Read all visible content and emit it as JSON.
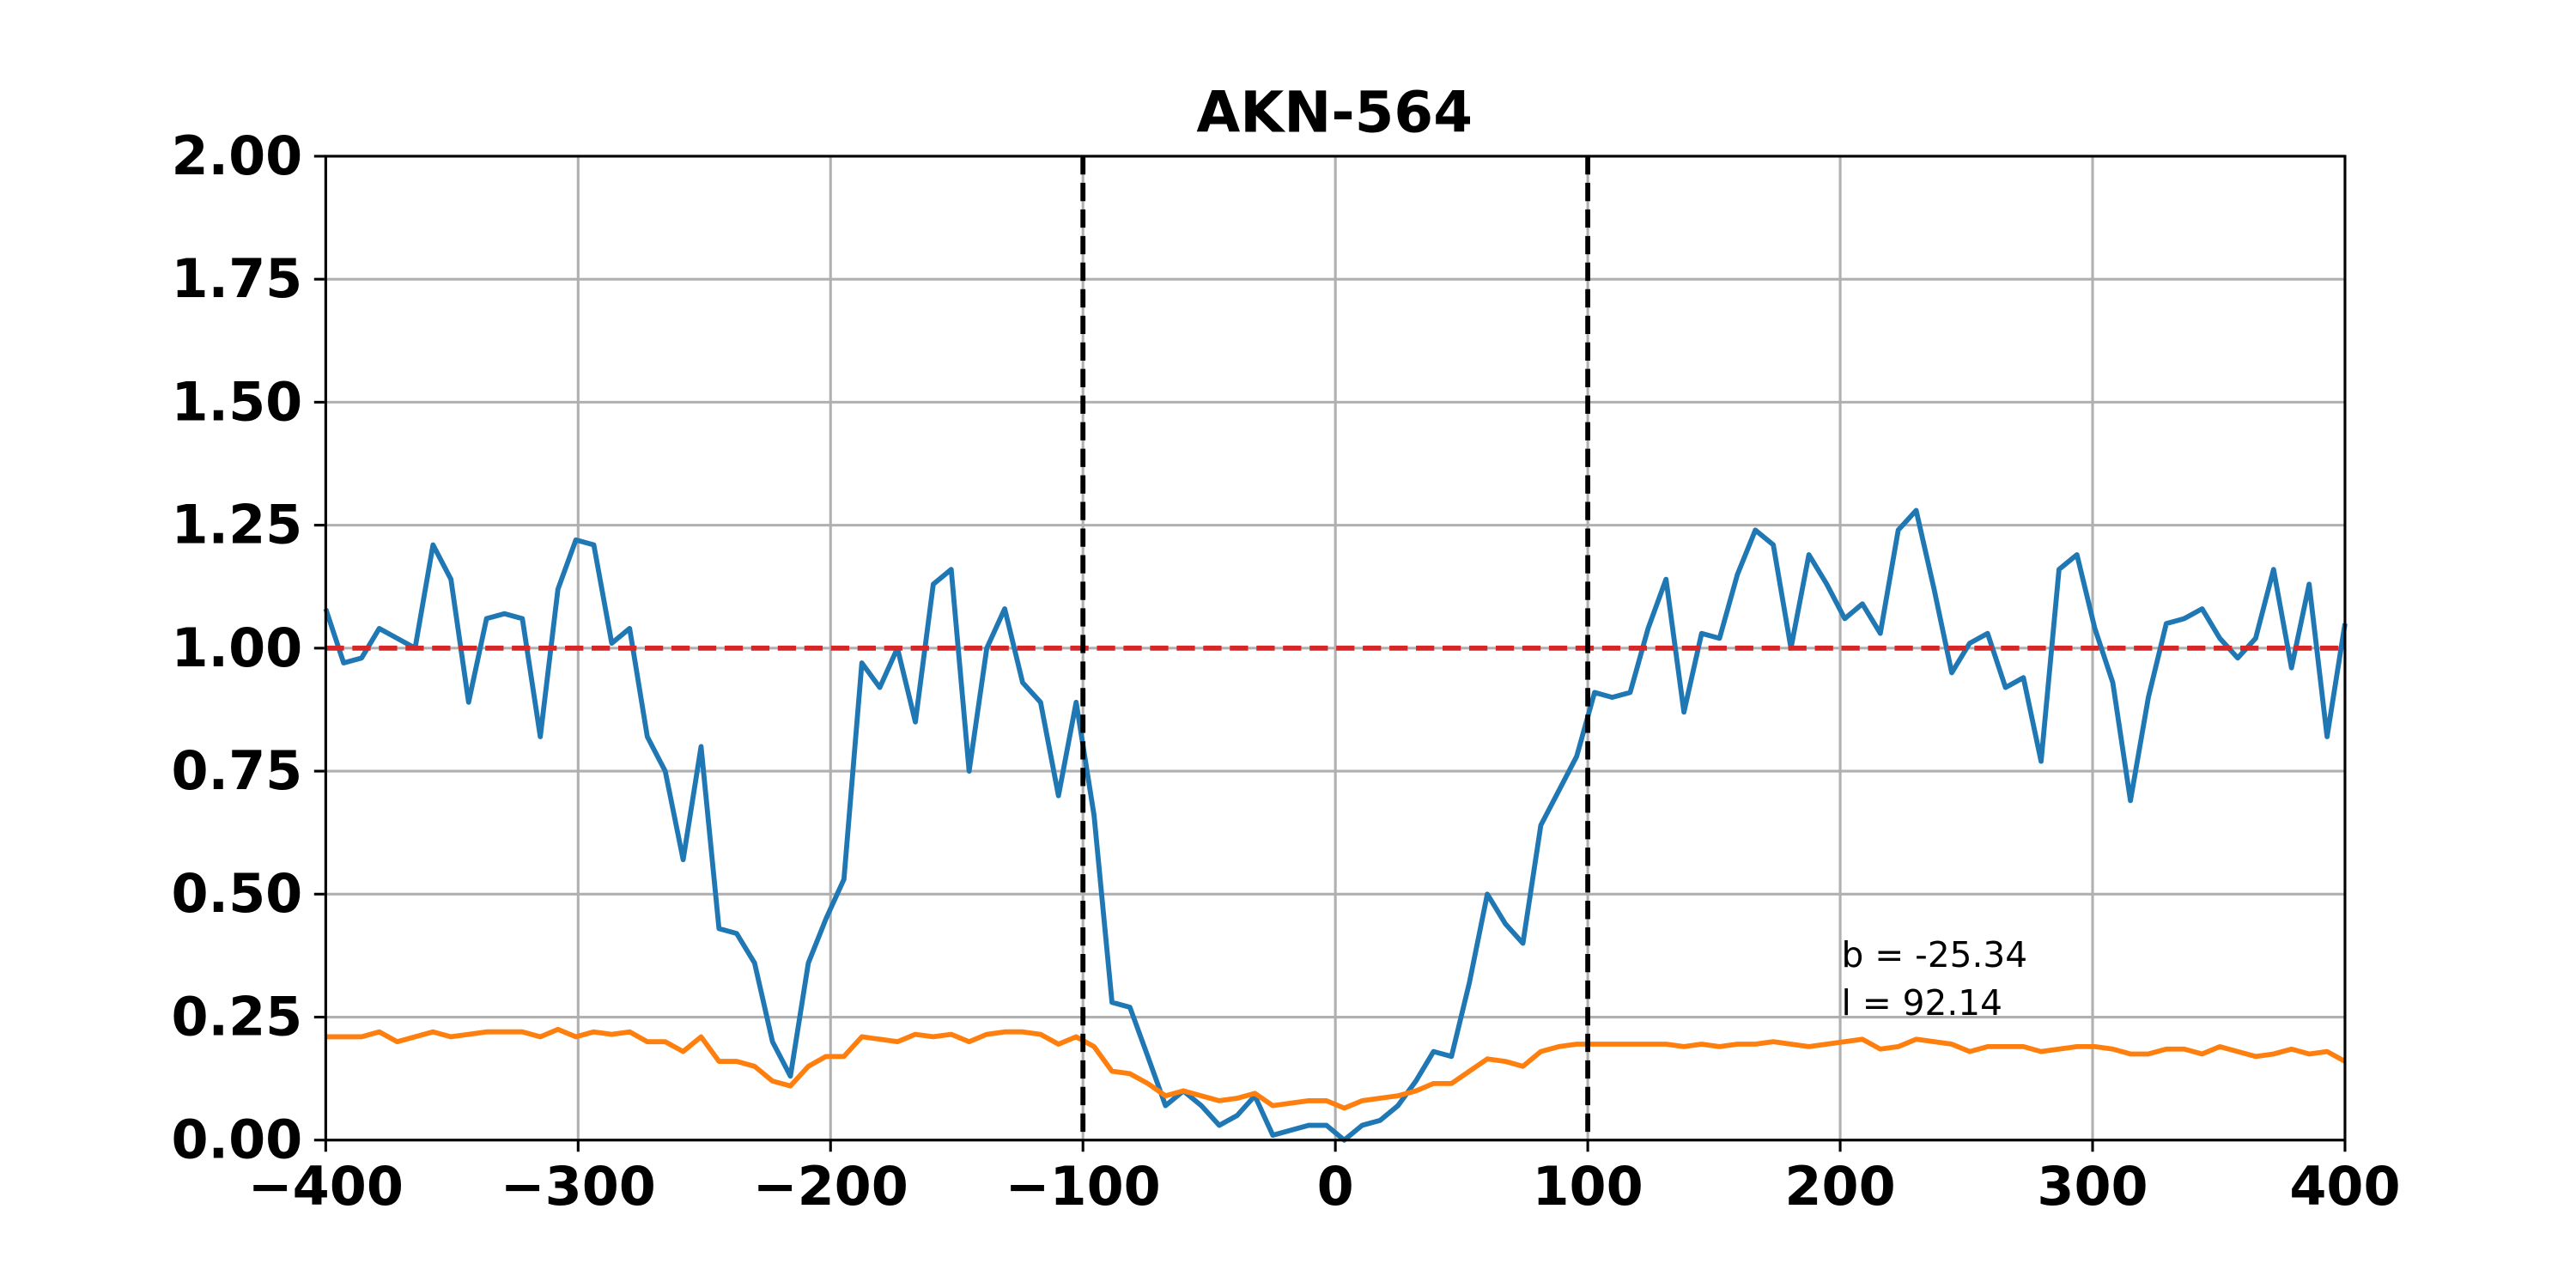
{
  "chart_data": {
    "type": "line",
    "title": "AKN-564",
    "x": [
      -400,
      -392.9,
      -385.8,
      -378.8,
      -371.7,
      -364.6,
      -357.5,
      -350.4,
      -343.4,
      -336.3,
      -329.2,
      -322.1,
      -315.0,
      -308.0,
      -300.9,
      -293.8,
      -286.7,
      -279.6,
      -272.6,
      -265.5,
      -258.4,
      -251.3,
      -244.2,
      -237.2,
      -230.1,
      -223.0,
      -215.9,
      -208.8,
      -201.8,
      -194.7,
      -187.6,
      -180.5,
      -173.5,
      -166.4,
      -159.3,
      -152.2,
      -145.1,
      -138.1,
      -131.0,
      -123.9,
      -116.8,
      -109.7,
      -102.7,
      -95.6,
      -88.5,
      -81.4,
      -74.3,
      -67.3,
      -60.2,
      -53.1,
      -46.0,
      -38.9,
      -31.9,
      -24.8,
      -17.7,
      -10.6,
      -3.5,
      3.5,
      10.6,
      17.7,
      24.8,
      31.9,
      38.9,
      46.0,
      53.1,
      60.2,
      67.3,
      74.3,
      81.4,
      88.5,
      95.6,
      102.7,
      109.7,
      116.8,
      123.9,
      131.0,
      138.1,
      145.1,
      152.2,
      159.3,
      166.4,
      173.5,
      180.5,
      187.6,
      194.7,
      201.8,
      208.8,
      215.9,
      223.0,
      230.1,
      237.2,
      244.2,
      251.3,
      258.4,
      265.5,
      272.6,
      279.6,
      286.7,
      293.8,
      300.9,
      308.0,
      315.0,
      322.1,
      329.2,
      336.3,
      343.4,
      350.4,
      357.5,
      364.6,
      371.7,
      378.8,
      385.8,
      392.9,
      400
    ],
    "series": [
      {
        "color": "#1f77b4",
        "values": [
          1.08,
          0.97,
          0.98,
          1.04,
          1.02,
          1.0,
          1.21,
          1.14,
          0.89,
          1.06,
          1.07,
          1.06,
          0.82,
          1.12,
          1.22,
          1.21,
          1.01,
          1.04,
          0.82,
          0.75,
          0.57,
          0.8,
          0.43,
          0.42,
          0.36,
          0.2,
          0.13,
          0.36,
          0.45,
          0.53,
          0.97,
          0.92,
          1.0,
          0.85,
          1.13,
          1.16,
          0.75,
          1.0,
          1.08,
          0.93,
          0.89,
          0.7,
          0.89,
          0.66,
          0.28,
          0.27,
          0.17,
          0.07,
          0.1,
          0.07,
          0.03,
          0.05,
          0.09,
          0.01,
          0.02,
          0.03,
          0.03,
          0.0,
          0.03,
          0.04,
          0.07,
          0.12,
          0.18,
          0.17,
          0.32,
          0.5,
          0.44,
          0.4,
          0.64,
          0.71,
          0.78,
          0.91,
          0.9,
          0.91,
          1.04,
          1.14,
          0.87,
          1.03,
          1.02,
          1.15,
          1.24,
          1.21,
          1.0,
          1.19,
          1.13,
          1.06,
          1.09,
          1.03,
          1.24,
          1.28,
          1.12,
          0.95,
          1.01,
          1.03,
          0.92,
          0.94,
          0.77,
          1.16,
          1.19,
          1.04,
          0.93,
          0.69,
          0.9,
          1.05,
          1.06,
          1.08,
          1.02,
          0.98,
          1.02,
          1.16,
          0.96,
          1.13,
          0.82,
          1.05
        ]
      },
      {
        "color": "#ff7f0e",
        "values": [
          0.21,
          0.21,
          0.21,
          0.22,
          0.2,
          0.21,
          0.22,
          0.21,
          0.215,
          0.22,
          0.22,
          0.22,
          0.21,
          0.225,
          0.21,
          0.22,
          0.215,
          0.22,
          0.2,
          0.2,
          0.18,
          0.21,
          0.16,
          0.16,
          0.15,
          0.12,
          0.11,
          0.15,
          0.17,
          0.17,
          0.21,
          0.205,
          0.2,
          0.215,
          0.21,
          0.215,
          0.2,
          0.215,
          0.22,
          0.22,
          0.215,
          0.195,
          0.21,
          0.19,
          0.14,
          0.135,
          0.115,
          0.09,
          0.1,
          0.09,
          0.08,
          0.085,
          0.095,
          0.07,
          0.075,
          0.08,
          0.08,
          0.065,
          0.08,
          0.085,
          0.09,
          0.1,
          0.115,
          0.115,
          0.14,
          0.165,
          0.16,
          0.15,
          0.18,
          0.19,
          0.195,
          0.195,
          0.195,
          0.195,
          0.195,
          0.195,
          0.19,
          0.195,
          0.19,
          0.195,
          0.195,
          0.2,
          0.195,
          0.19,
          0.195,
          0.2,
          0.205,
          0.185,
          0.19,
          0.205,
          0.2,
          0.195,
          0.18,
          0.19,
          0.19,
          0.19,
          0.18,
          0.185,
          0.19,
          0.19,
          0.185,
          0.175,
          0.175,
          0.185,
          0.185,
          0.175,
          0.19,
          0.18,
          0.17,
          0.175,
          0.185,
          0.175,
          0.18,
          0.16
        ]
      }
    ],
    "hlines": [
      {
        "value": 1,
        "color": "#d62728"
      }
    ],
    "vlines": [
      {
        "value": -100,
        "color": "#000000"
      },
      {
        "value": 100,
        "color": "#000000"
      }
    ],
    "annotations": [
      "b = -25.34",
      "l = 92.14"
    ],
    "xlim": [
      -400,
      400
    ],
    "xticks": [
      {
        "value": -400,
        "label": "−400"
      },
      {
        "value": -300,
        "label": "−300"
      },
      {
        "value": -200,
        "label": "−200"
      },
      {
        "value": -100,
        "label": "−100"
      },
      0,
      100,
      200,
      300,
      400
    ],
    "ylim": [
      0,
      2
    ],
    "yticks": [
      {
        "value": 0,
        "label": "0.00"
      },
      {
        "value": 0.25,
        "label": "0.25"
      },
      {
        "value": 0.5,
        "label": "0.50"
      },
      {
        "value": 0.75,
        "label": "0.75"
      },
      {
        "value": 1,
        "label": "1.00"
      },
      {
        "value": 1.25,
        "label": "1.25"
      },
      {
        "value": 1.5,
        "label": "1.50"
      },
      {
        "value": 1.75,
        "label": "1.75"
      },
      {
        "value": 2,
        "label": "2.00"
      }
    ],
    "grid": true
  }
}
